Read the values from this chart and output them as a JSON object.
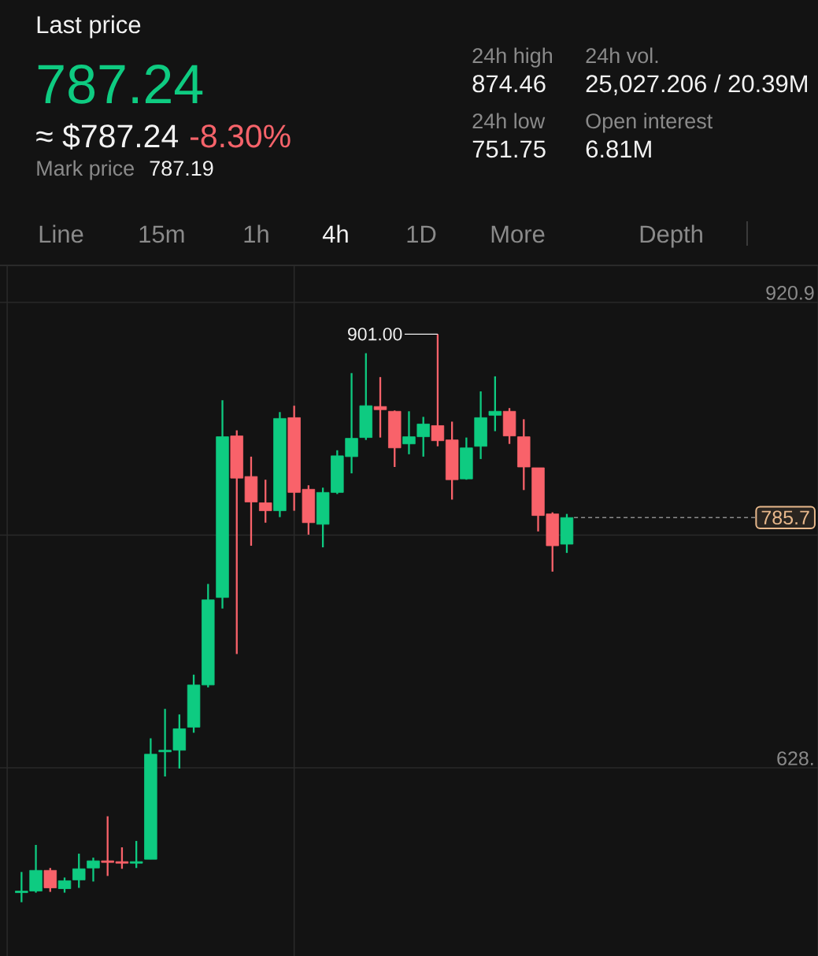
{
  "chart_data": {
    "type": "candlestick",
    "title": "Last price",
    "categories": [
      null,
      null,
      null,
      null,
      null,
      null,
      null,
      null,
      null,
      null,
      null,
      null,
      null,
      null,
      null,
      null,
      null,
      null,
      null,
      null,
      null,
      null,
      null,
      null,
      null,
      null,
      null,
      null,
      null,
      null,
      null,
      null,
      null,
      null,
      null,
      null,
      null,
      null,
      null,
      null,
      null,
      null,
      null,
      null,
      null,
      null,
      null,
      null,
      null,
      null,
      null,
      null,
      null,
      null,
      null,
      null,
      null
    ],
    "ohlc": [
      null,
      [
        550,
        563,
        544,
        551
      ],
      [
        551,
        580,
        550,
        564
      ],
      [
        564,
        565.5,
        550.5,
        553
      ],
      [
        552.5,
        559.5,
        550,
        557.5
      ],
      [
        558,
        574.5,
        553,
        565
      ],
      [
        565.5,
        572,
        557,
        570
      ],
      [
        570,
        598,
        560.5,
        569
      ],
      [
        569.5,
        578.5,
        565,
        568.5
      ],
      [
        568.5,
        582.5,
        565.5,
        569.5
      ],
      [
        571,
        647,
        571,
        637
      ],
      [
        638.5,
        665.5,
        623,
        639.5
      ],
      [
        639.5,
        662,
        628,
        653
      ],
      [
        654,
        687,
        650.5,
        680.5
      ],
      [
        680.5,
        744,
        679,
        734
      ],
      [
        735.5,
        859.5,
        728.5,
        836.5
      ],
      [
        837,
        840.5,
        700,
        810.5
      ],
      [
        811.5,
        824,
        768,
        795.5
      ],
      [
        795,
        809.5,
        782.5,
        790
      ],
      [
        790,
        852,
        786,
        848
      ],
      [
        848.5,
        856,
        790,
        801.5
      ],
      [
        803.5,
        806,
        775,
        782.5
      ],
      [
        781.5,
        804.5,
        767,
        801.5
      ],
      [
        801.5,
        828,
        800.5,
        824.5
      ],
      [
        824,
        876.5,
        813.5,
        835.5
      ],
      [
        836,
        889,
        834.5,
        856
      ],
      [
        855.5,
        874,
        836,
        853.5
      ],
      [
        852.5,
        853,
        817.5,
        829.5
      ],
      [
        832,
        852.5,
        825.5,
        836.5
      ],
      [
        836.5,
        849,
        824,
        844.5
      ],
      [
        843.5,
        901.0,
        830.5,
        834
      ],
      [
        834.5,
        846,
        797,
        809.5
      ],
      [
        810,
        836,
        809.5,
        829.5
      ],
      [
        830.5,
        865,
        822.5,
        848.5
      ],
      [
        850,
        874.46,
        840,
        852.5
      ],
      [
        852.5,
        854.5,
        832,
        837
      ],
      [
        836.5,
        847.5,
        803,
        817.5
      ],
      [
        817,
        817,
        777,
        787
      ],
      [
        788,
        789,
        751.75,
        768
      ],
      [
        769,
        788,
        763.5,
        785.7
      ],
      null,
      null,
      null,
      null,
      null,
      null,
      null,
      null,
      null,
      null,
      null,
      null,
      null,
      null,
      null,
      null,
      null
    ],
    "colors": [
      null,
      "#0ecb81",
      "#0ecb81",
      "#f9626a",
      "#0ecb81",
      "#0ecb81",
      "#0ecb81",
      "#f9626a",
      "#f9626a",
      "#0ecb81",
      "#0ecb81",
      "#0ecb81",
      "#0ecb81",
      "#0ecb81",
      "#0ecb81",
      "#0ecb81",
      "#f9626a",
      "#f9626a",
      "#f9626a",
      "#0ecb81",
      "#f9626a",
      "#f9626a",
      "#0ecb81",
      "#0ecb81",
      "#0ecb81",
      "#0ecb81",
      "#f9626a",
      "#f9626a",
      "#0ecb81",
      "#0ecb81",
      "#f9626a",
      "#f9626a",
      "#0ecb81",
      "#0ecb81",
      "#0ecb81",
      "#f9626a",
      "#f9626a",
      "#f9626a",
      "#f9626a",
      "#0ecb81",
      null,
      null,
      null,
      null,
      null,
      null,
      null,
      null,
      null,
      null,
      null,
      null,
      null,
      null,
      null,
      null,
      null
    ],
    "ylim": [
      510.2,
      943.7
    ],
    "yticks": [
      {
        "value": 920.95,
        "label": "920.9"
      },
      {
        "value": 774.7,
        "label": null
      },
      {
        "value": 628.45,
        "label": "628."
      }
    ],
    "grid": "y",
    "ref_lines": [
      {
        "axis": "y",
        "value": 785.7,
        "label": "785.7",
        "color": "#8c8c8c",
        "line_style": "dashed"
      }
    ],
    "annotations": [
      "901.00",
      "787.24",
      "≈ $787.24",
      "-8.30%",
      "Mark price",
      "787.19",
      "24h high",
      "874.46",
      "24h vol.",
      "25,027.206 / 20.39M",
      "24h low",
      "751.75",
      "Open interest",
      "6.81M",
      "Line",
      "15m",
      "1h",
      "4h",
      "1D",
      "More",
      "Depth"
    ]
  }
}
